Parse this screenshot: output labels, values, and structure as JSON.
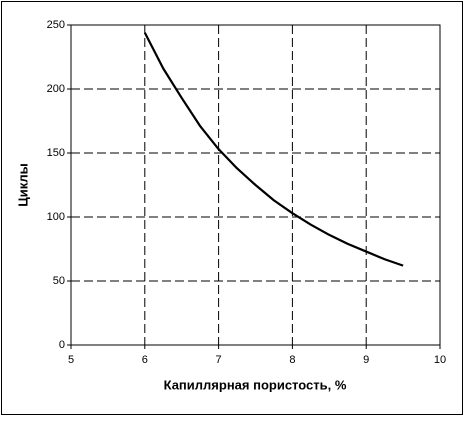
{
  "chart_data": {
    "type": "line",
    "x_label": "Капиллярная пористость, %",
    "y_label": "Циклы",
    "x": [
      6,
      6.25,
      6.5,
      6.75,
      7,
      7.25,
      7.5,
      7.75,
      8,
      8.25,
      8.5,
      8.75,
      9,
      9.25,
      9.5
    ],
    "values": [
      244,
      216,
      193,
      171,
      153,
      138,
      125,
      113,
      103,
      94,
      86,
      79,
      73,
      67,
      62
    ],
    "color": "#000000",
    "xlim": [
      5,
      10
    ],
    "xticks": [
      5,
      6,
      7,
      8,
      9,
      10
    ],
    "ylim": [
      0,
      250
    ],
    "yticks": [
      0,
      50,
      100,
      150,
      200,
      250
    ],
    "grid": true
  }
}
